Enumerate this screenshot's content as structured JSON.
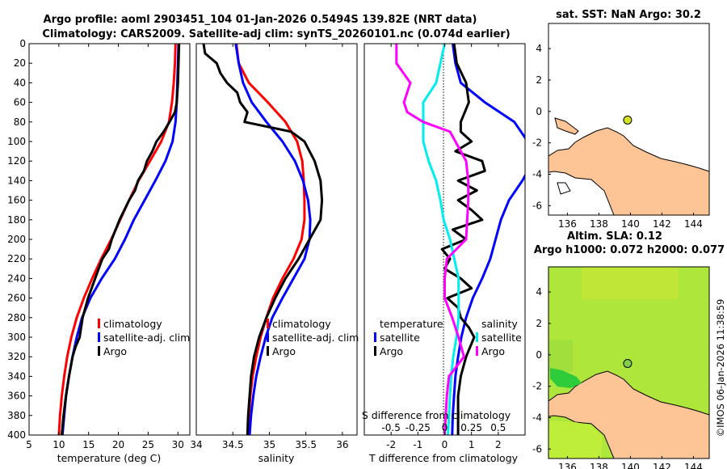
{
  "header": {
    "title_line1": "Argo profile: aoml 2903451_104 01-Jan-2026 0.5494S 139.82E (NRT data)",
    "title_line2": "Climatology: CARS2009. Satellite-adj clim: synTS_20260101.nc (0.074d earlier)"
  },
  "colors": {
    "climatology": "#ff0000",
    "satellite": "#0000ff",
    "argo": "#000000",
    "t_sat": "#00eeee",
    "s_sat": "#ff00ff",
    "land": "#fdc596",
    "sla_field": "#aee63c",
    "argo_marker": "#d4e31f"
  },
  "chart_data": [
    {
      "type": "line",
      "name": "temperature",
      "xlabel": "temperature (deg C)",
      "xlim": [
        5,
        32
      ],
      "ylim": [
        400,
        0
      ],
      "x_ticks": [
        "5",
        "10",
        "15",
        "20",
        "25",
        "30"
      ],
      "x_tick_values": [
        5,
        10,
        15,
        20,
        25,
        30
      ],
      "y_ticks": [
        "0",
        "20",
        "40",
        "60",
        "80",
        "100",
        "120",
        "140",
        "160",
        "180",
        "200",
        "220",
        "240",
        "260",
        "280",
        "300",
        "320",
        "340",
        "360",
        "380",
        "400"
      ],
      "legend": [
        "climatology",
        "satellite-adj. clim",
        "Argo"
      ],
      "series": [
        {
          "name": "climatology",
          "depth": [
            0,
            20,
            40,
            60,
            80,
            100,
            120,
            140,
            160,
            180,
            200,
            220,
            240,
            260,
            280,
            300,
            320,
            340,
            360,
            380,
            400
          ],
          "values": [
            29.6,
            29.5,
            29.3,
            29.0,
            28.5,
            27.2,
            25.3,
            23.4,
            21.8,
            20.3,
            18.8,
            17.1,
            15.6,
            14.2,
            13.0,
            12.1,
            11.4,
            10.9,
            10.5,
            10.2,
            10.0
          ]
        },
        {
          "name": "satellite-adj. clim",
          "depth": [
            0,
            20,
            40,
            60,
            80,
            100,
            120,
            140,
            160,
            180,
            200,
            220,
            240,
            260,
            280,
            300,
            320,
            340,
            360,
            380,
            400
          ],
          "values": [
            30.1,
            30.0,
            29.9,
            29.8,
            29.6,
            29.1,
            27.9,
            26.2,
            24.4,
            22.6,
            21.1,
            19.4,
            17.2,
            15.3,
            13.9,
            13.0,
            12.3,
            11.7,
            11.2,
            10.9,
            10.6
          ]
        },
        {
          "name": "Argo",
          "depth": [
            0,
            20,
            40,
            60,
            70,
            80,
            90,
            100,
            110,
            120,
            130,
            140,
            150,
            160,
            180,
            200,
            210,
            220,
            240,
            260,
            280,
            300,
            310,
            320,
            340,
            360,
            380,
            400
          ],
          "values": [
            30.2,
            30.1,
            30.0,
            29.8,
            29.5,
            28.6,
            27.6,
            26.4,
            25.7,
            24.8,
            24.3,
            23.3,
            22.8,
            21.8,
            20.2,
            18.9,
            18.4,
            17.3,
            16.1,
            14.9,
            14.0,
            13.5,
            12.8,
            12.3,
            11.7,
            11.2,
            10.8,
            10.5
          ]
        }
      ]
    },
    {
      "type": "line",
      "name": "salinity",
      "xlabel": "salinity",
      "xlim": [
        34,
        36.2
      ],
      "ylim": [
        400,
        0
      ],
      "x_ticks": [
        "34",
        "34.5",
        "35",
        "35.5",
        "36"
      ],
      "x_tick_values": [
        34,
        34.5,
        35,
        35.5,
        36
      ],
      "legend": [
        "climatology",
        "satellite-adj. clim",
        "Argo"
      ],
      "series": [
        {
          "name": "climatology",
          "depth": [
            0,
            20,
            40,
            60,
            80,
            100,
            120,
            140,
            160,
            180,
            200,
            220,
            240,
            260,
            280,
            300,
            320,
            340,
            360,
            380,
            400
          ],
          "values": [
            34.55,
            34.58,
            34.72,
            34.98,
            35.22,
            35.38,
            35.45,
            35.47,
            35.48,
            35.48,
            35.44,
            35.33,
            35.18,
            35.05,
            34.96,
            34.88,
            34.82,
            34.77,
            34.74,
            34.72,
            34.71
          ]
        },
        {
          "name": "satellite-adj. clim",
          "depth": [
            0,
            20,
            40,
            60,
            80,
            100,
            120,
            140,
            160,
            180,
            200,
            220,
            240,
            260,
            280,
            300,
            320,
            340,
            360,
            380,
            400
          ],
          "values": [
            34.54,
            34.58,
            34.64,
            34.76,
            34.96,
            35.18,
            35.35,
            35.46,
            35.53,
            35.56,
            35.55,
            35.48,
            35.33,
            35.18,
            35.04,
            34.95,
            34.88,
            34.82,
            34.78,
            34.75,
            34.73
          ]
        },
        {
          "name": "Argo",
          "depth": [
            0,
            10,
            20,
            30,
            40,
            50,
            60,
            70,
            80,
            90,
            100,
            120,
            140,
            160,
            180,
            200,
            220,
            240,
            260,
            280,
            300,
            320,
            340,
            360,
            380,
            400
          ],
          "values": [
            34.1,
            34.12,
            34.28,
            34.33,
            34.42,
            34.56,
            34.6,
            34.7,
            34.66,
            35.3,
            35.48,
            35.62,
            35.7,
            35.72,
            35.7,
            35.55,
            35.4,
            35.22,
            35.08,
            34.96,
            34.86,
            34.79,
            34.75,
            34.73,
            34.71,
            34.7
          ]
        }
      ]
    },
    {
      "type": "line",
      "name": "differences",
      "xlabel": "T difference from climatology",
      "xlabel_top": "S difference from climatology",
      "xlim": [
        -3,
        3
      ],
      "ylim": [
        400,
        0
      ],
      "x_ticks": [
        "-2",
        "-1",
        "0",
        "1",
        "2"
      ],
      "x_tick_values": [
        -2,
        -1,
        0,
        1,
        2
      ],
      "s_ticks": [
        "-0.5",
        "-0.25",
        "0",
        "0.25",
        "0.5"
      ],
      "s_tick_values": [
        -0.5,
        -0.25,
        0,
        0.25,
        0.5
      ],
      "legend_title_t": "temperature",
      "legend_title_s": "salinity",
      "legend": [
        "satellite",
        "Argo",
        "satellite",
        "Argo"
      ],
      "series": [
        {
          "name": "T satellite",
          "depth": [
            0,
            20,
            40,
            60,
            80,
            100,
            120,
            140,
            160,
            180,
            200,
            220,
            240,
            260,
            280,
            300,
            320,
            340,
            360,
            380,
            400
          ],
          "values": [
            0.3,
            0.4,
            0.6,
            1.5,
            2.6,
            3.1,
            3.3,
            2.9,
            2.4,
            2.1,
            1.9,
            1.7,
            1.4,
            1.05,
            0.8,
            0.62,
            0.5,
            0.4,
            0.35,
            0.3,
            0.28
          ]
        },
        {
          "name": "T Argo",
          "depth": [
            0,
            20,
            40,
            60,
            80,
            90,
            100,
            110,
            120,
            130,
            140,
            150,
            160,
            170,
            180,
            190,
            200,
            210,
            220,
            230,
            240,
            250,
            260,
            270,
            280,
            290,
            300,
            320,
            340,
            360,
            380,
            400
          ],
          "values": [
            0.35,
            0.45,
            0.8,
            0.9,
            0.6,
            0.6,
            1.0,
            0.4,
            1.4,
            1.5,
            0.5,
            1.2,
            0.5,
            1.0,
            1.4,
            0.3,
            0.8,
            -0.1,
            0.2,
            0.0,
            0.6,
            1.0,
            0.1,
            0.5,
            0.6,
            0.9,
            1.1,
            0.8,
            0.6,
            0.5,
            0.5,
            0.5
          ]
        },
        {
          "name": "S satellite",
          "depth": [
            0,
            20,
            40,
            60,
            80,
            100,
            120,
            140,
            160,
            180,
            200,
            220,
            240,
            260,
            280,
            300,
            320,
            340,
            360,
            380,
            400
          ],
          "values": [
            0.0,
            -0.04,
            -0.08,
            -0.2,
            -0.2,
            -0.2,
            -0.15,
            -0.08,
            -0.04,
            -0.01,
            0.05,
            0.09,
            0.13,
            0.13,
            0.13,
            0.11,
            0.08,
            0.06,
            0.05,
            0.04,
            0.03
          ]
        },
        {
          "name": "S Argo",
          "depth": [
            0,
            20,
            40,
            60,
            70,
            80,
            90,
            100,
            120,
            140,
            160,
            180,
            200,
            220,
            240,
            260,
            280,
            300,
            320,
            340,
            360,
            380,
            400
          ],
          "values": [
            -0.45,
            -0.45,
            -0.32,
            -0.38,
            -0.35,
            -0.2,
            0.05,
            0.1,
            0.2,
            0.22,
            0.22,
            0.21,
            0.2,
            0.02,
            0.0,
            0.0,
            0.07,
            0.13,
            0.18,
            0.04,
            0.02,
            0.01,
            0.0
          ]
        }
      ]
    }
  ],
  "maps": {
    "sst": {
      "title": "sat. SST: NaN Argo: 30.2",
      "x_ticks": [
        "136",
        "138",
        "140",
        "142",
        "144"
      ],
      "x_tick_values": [
        136,
        138,
        140,
        142,
        144
      ],
      "y_ticks": [
        "4",
        "2",
        "0",
        "-2",
        "-4",
        "-6"
      ],
      "y_tick_values": [
        4,
        2,
        0,
        -2,
        -4,
        -6
      ],
      "xlim": [
        134.8,
        145
      ],
      "ylim": [
        -6.6,
        5.6
      ],
      "argo_lon": 139.82,
      "argo_lat": -0.55
    },
    "sla": {
      "title_line1": "Altim. SLA: 0.12",
      "title_line2": "Argo h1000: 0.072 h2000: 0.077",
      "x_ticks": [
        "136",
        "138",
        "140",
        "142",
        "144"
      ],
      "x_tick_values": [
        136,
        138,
        140,
        142,
        144
      ],
      "y_ticks": [
        "4",
        "2",
        "0",
        "-2",
        "-4",
        "-6"
      ],
      "y_tick_values": [
        4,
        2,
        0,
        -2,
        -4,
        -6
      ],
      "xlim": [
        134.8,
        145
      ],
      "ylim": [
        -6.6,
        5.6
      ],
      "argo_lon": 139.82,
      "argo_lat": -0.55
    }
  },
  "credit": "©IMOS 06-Jan-2026 11:38:59"
}
